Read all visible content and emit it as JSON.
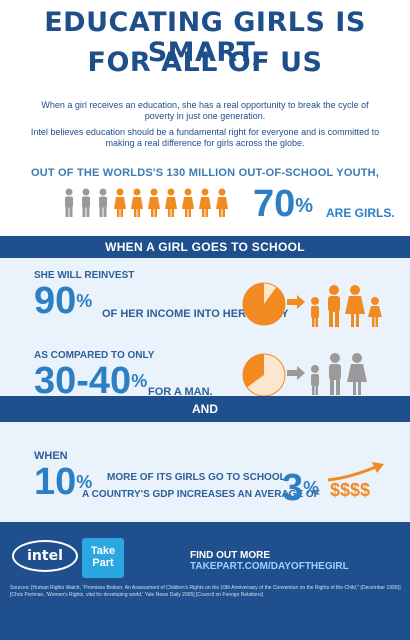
{
  "header": {
    "title_line1": "EDUCATING GIRLS IS SMART,",
    "title_line2": "FOR ALL OF US"
  },
  "intro": {
    "p1": "When a girl receives an education, she has a real opportunity to break the cycle of poverty in just one generation.",
    "p2": "Intel believes education should be a fundamental right for everyone and is committed to making a real difference for girls across the globe."
  },
  "youth": {
    "headline": "OUT OF THE WORLDS'S 130 MILLION OUT-OF-SCHOOL YOUTH,",
    "percent_value": "70",
    "percent_sign": "%",
    "tail": "ARE GIRLS.",
    "figures_gray": 3,
    "figures_orange": 7
  },
  "school": {
    "band_label": "WHEN A GIRL GOES TO SCHOOL",
    "reinvest_label": "SHE WILL REINVEST",
    "reinvest_value": "90",
    "reinvest_sign": "%",
    "reinvest_tail": "OF HER INCOME INTO HER FAMILY",
    "reinvest_fraction": 0.9,
    "compare_label": "AS COMPARED TO ONLY",
    "compare_value": "30-40",
    "compare_sign": "%",
    "compare_tail": "FOR A MAN.",
    "compare_fraction": 0.35
  },
  "and_label": "AND",
  "gdp": {
    "when_label": "WHEN",
    "girls_value": "10",
    "girls_sign": "%",
    "line1": "MORE OF ITS GIRLS GO TO SCHOOL,",
    "line2": "A COUNTRY'S GDP INCREASES AN AVERAGE OF",
    "gdp_value": "3",
    "gdp_sign": "%",
    "money": "$$$$"
  },
  "footer": {
    "intel_logo": "intel",
    "takepart_logo_line1": "Take",
    "takepart_logo_line2": "Part",
    "find_more": "FIND OUT MORE",
    "link": "TAKEPART.COM/DAYOFTHEGIRL",
    "sources": "Sources: [Human Rights Watch, \"Promises Broken: An Assessment of Children's Rights on the 10th Anniversary of the Convention on the Rights of the Child,\" (December 1999)] [Chris Portman, 'Women's Rights, vital for developing world,' Yale News Daily 2005] [Council on Foreign Relations]"
  },
  "colors": {
    "navy": "#1f4f8c",
    "blue": "#2d7fc4",
    "orange": "#f18a21",
    "gray": "#9a9a9a"
  }
}
